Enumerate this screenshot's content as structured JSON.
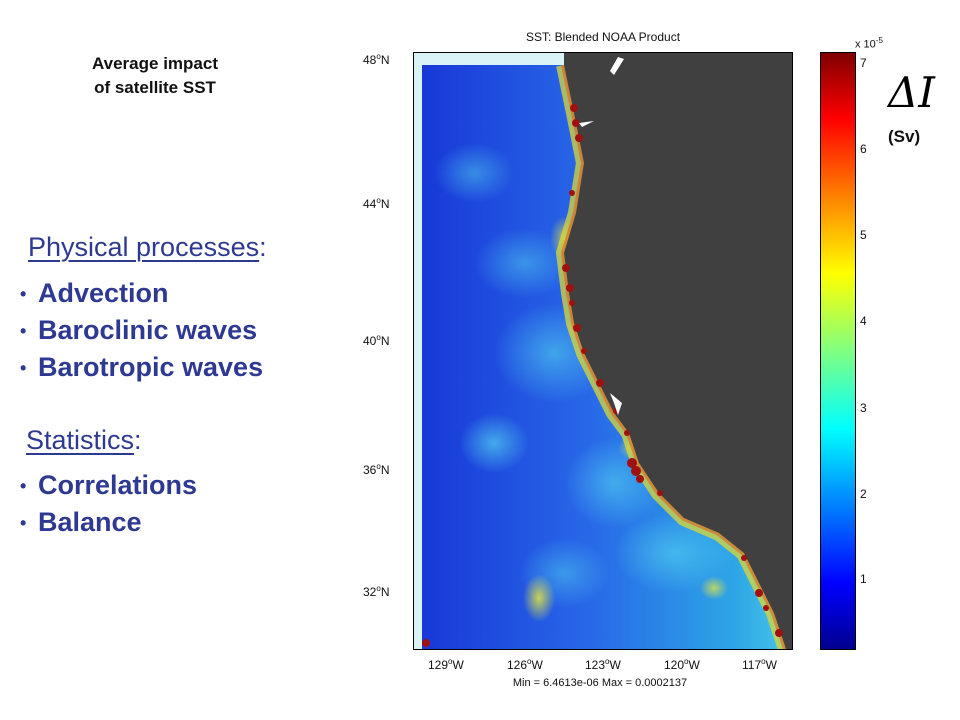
{
  "side_title": {
    "line1": "Average impact",
    "line2": "of satellite SST"
  },
  "physical": {
    "heading": "Physical processes",
    "colon": ":",
    "items": [
      "Advection",
      "Baroclinic waves",
      "Barotropic waves"
    ]
  },
  "statistics": {
    "heading": "Statistics",
    "colon": ":",
    "items": [
      "Correlations",
      "Balance"
    ]
  },
  "bullet_char": "•",
  "figure": {
    "title": "SST: Blended NOAA Product",
    "min_max": "Min = 6.4613e-06 Max = 0.0002137",
    "lat_labels": [
      {
        "deg": "48",
        "hemi": "N"
      },
      {
        "deg": "44",
        "hemi": "N"
      },
      {
        "deg": "40",
        "hemi": "N"
      },
      {
        "deg": "36",
        "hemi": "N"
      },
      {
        "deg": "32",
        "hemi": "N"
      }
    ],
    "lon_labels": [
      {
        "deg": "129",
        "hemi": "W"
      },
      {
        "deg": "126",
        "hemi": "W"
      },
      {
        "deg": "123",
        "hemi": "W"
      },
      {
        "deg": "120",
        "hemi": "W"
      },
      {
        "deg": "117",
        "hemi": "W"
      }
    ],
    "colors": {
      "land": "#404040",
      "ocean_low": "#1a3dd6",
      "ocean_mid": "#2aa8e8",
      "edge": "#d8f4f6"
    }
  },
  "colorbar": {
    "exponent_prefix": "x 10",
    "exponent": "-5",
    "ticks": [
      "7",
      "6",
      "5",
      "4",
      "3",
      "2",
      "1"
    ],
    "symbol": "ΔI",
    "units": "(Sv)"
  }
}
